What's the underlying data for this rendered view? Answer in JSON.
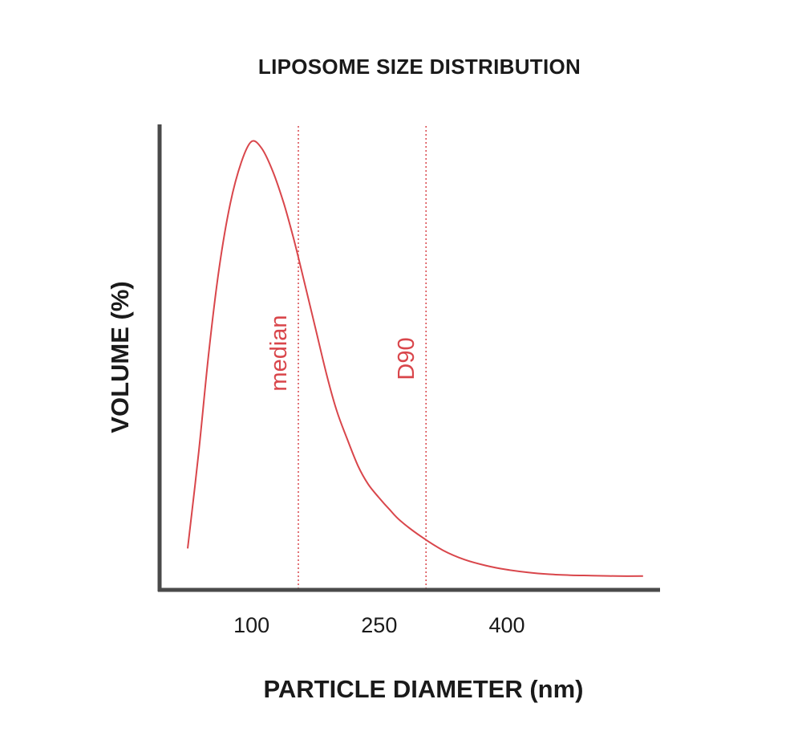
{
  "chart_data": {
    "type": "line",
    "title": "LIPOSOME SIZE DISTRIBUTION",
    "xlabel": "PARTICLE DIAMETER (nm)",
    "ylabel": "VOLUME (%)",
    "xlim": [
      -8,
      579
    ],
    "ylim": [
      0,
      100
    ],
    "xticks": [
      100,
      250,
      400
    ],
    "series": [
      {
        "color": "#d9464b",
        "points": [
          [
            25,
            9
          ],
          [
            38,
            30
          ],
          [
            50,
            52
          ],
          [
            62,
            70
          ],
          [
            75,
            84
          ],
          [
            88,
            93
          ],
          [
            100,
            97.5
          ],
          [
            112,
            96
          ],
          [
            125,
            91
          ],
          [
            138,
            84
          ],
          [
            150,
            76
          ],
          [
            162,
            67
          ],
          [
            175,
            57
          ],
          [
            188,
            47
          ],
          [
            200,
            39
          ],
          [
            212,
            33
          ],
          [
            225,
            27
          ],
          [
            237,
            23
          ],
          [
            250,
            20
          ],
          [
            262,
            17.5
          ],
          [
            275,
            15
          ],
          [
            300,
            11.5
          ],
          [
            325,
            8.6
          ],
          [
            350,
            6.6
          ],
          [
            375,
            5.3
          ],
          [
            400,
            4.4
          ],
          [
            425,
            3.8
          ],
          [
            450,
            3.4
          ],
          [
            475,
            3.2
          ],
          [
            500,
            3.1
          ],
          [
            530,
            3.0
          ],
          [
            560,
            3.0
          ]
        ]
      }
    ],
    "reference_lines": [
      {
        "label": "median",
        "x": 155,
        "color": "#d9464b",
        "style": "dotted"
      },
      {
        "label": "D90",
        "x": 305,
        "color": "#d9464b",
        "style": "dotted"
      }
    ],
    "grid": false,
    "legend": false
  }
}
